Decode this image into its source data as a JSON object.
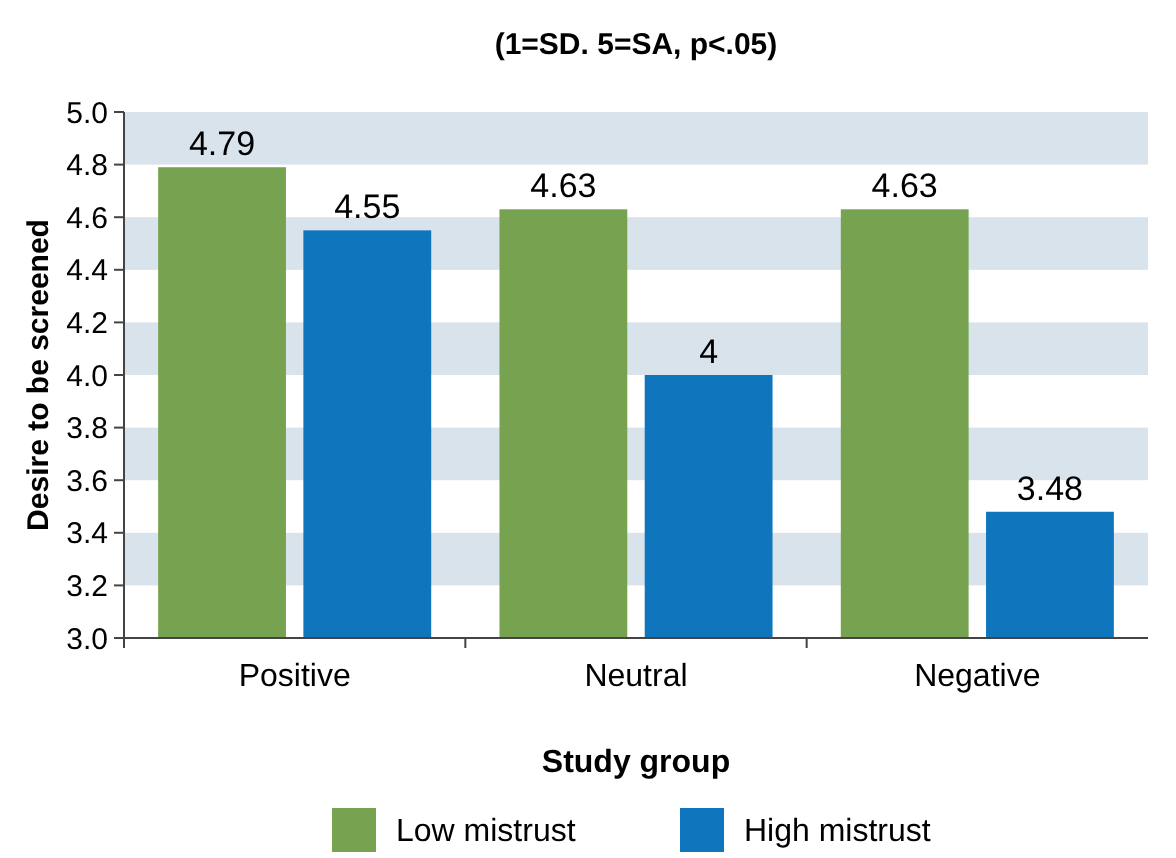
{
  "chart_data": {
    "type": "bar",
    "title": "(1=SD. 5=SA, p<.05)",
    "xlabel": "Study group",
    "ylabel": "Desire to be screened",
    "categories": [
      "Positive",
      "Neutral",
      "Negative"
    ],
    "series": [
      {
        "name": "Low mistrust",
        "color": "#77a350",
        "values": [
          4.79,
          4.63,
          4.63
        ]
      },
      {
        "name": "High mistrust",
        "color": "#0f75bc",
        "values": [
          4.55,
          4,
          3.48
        ]
      }
    ],
    "ylim": [
      3,
      5
    ],
    "yticks": [
      "3.0",
      "3.2",
      "3.4",
      "3.6",
      "3.8",
      "4.0",
      "4.2",
      "4.4",
      "4.6",
      "4.8",
      "5.0"
    ],
    "bands": [
      {
        "axis": "y",
        "from": 3.2,
        "to": 3.4,
        "color": "#d9e3ec"
      },
      {
        "axis": "y",
        "from": 3.6,
        "to": 3.8,
        "color": "#d9e3ec"
      },
      {
        "axis": "y",
        "from": 4.0,
        "to": 4.2,
        "color": "#d9e3ec"
      },
      {
        "axis": "y",
        "from": 4.4,
        "to": 4.6,
        "color": "#d9e3ec"
      },
      {
        "axis": "y",
        "from": 4.8,
        "to": 5.0,
        "color": "#d9e3ec"
      }
    ],
    "legend": "bottom",
    "data_labels": true
  }
}
